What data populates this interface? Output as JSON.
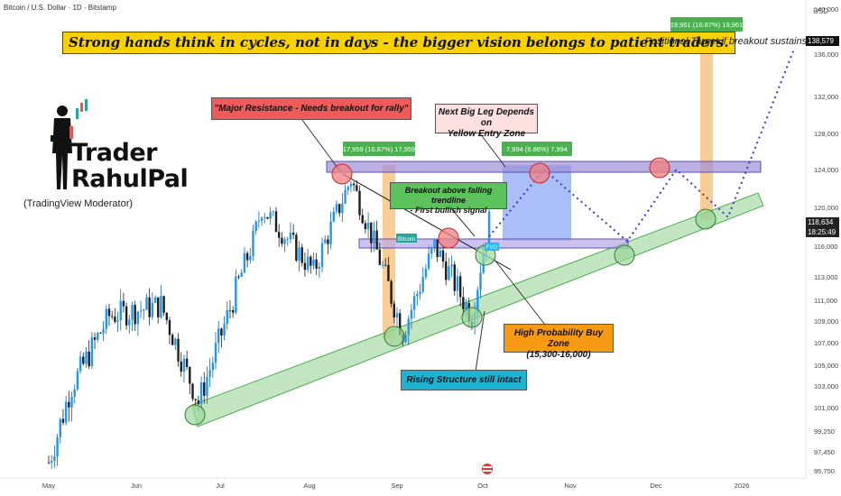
{
  "header": {
    "symbol_line": "Bitcoin / U.S. Dollar · 1D · Bitstamp",
    "currency": "USD"
  },
  "headline": "Strong hands think in cycles, not in days - the bigger vision belongs to patient traders.",
  "positional_target": "· Positional Target if breakout sustains ·",
  "logo": {
    "line1": "Trader",
    "line2": "RahulPal",
    "subtitle": "(TradingView Moderator)"
  },
  "annotations": {
    "major_resistance": "\"Major Resistance - Needs breakout for rally\"",
    "next_leg_line1": "Next Big Leg Depends on",
    "next_leg_line2": "Yellow Entry Zone",
    "breakout_line1": "Breakout above falling trendline",
    "breakout_line2": "- First bullish signal",
    "buy_zone_line1": "High Probability Buy Zone",
    "buy_zone_line2": "(15,300-16,000)",
    "rising": "Rising Structure still intact",
    "measure1": "17,959 (16.87%) 17,959",
    "measure2": "7,994 (6.86%) 7,994",
    "measure3": "19,961 (16.87%) 19,961",
    "bitcoin_tag": "Bitcoin",
    "fvg_tag": "FVG"
  },
  "price_axis": {
    "ticks": [
      "140,000",
      "136,000",
      "132,000",
      "128,000",
      "124,000",
      "120,000",
      "116,000",
      "113,000",
      "111,000",
      "109,000",
      "107,000",
      "105,000",
      "103,000",
      "101,000",
      "99,250",
      "97,450",
      "95,750"
    ],
    "current_price": "118,634",
    "countdown": "18:25:49",
    "target_price": "138,579"
  },
  "time_axis": {
    "labels": [
      "May",
      "Jun",
      "Jul",
      "Aug",
      "Sep",
      "Oct",
      "Nov",
      "Dec",
      "2026"
    ]
  },
  "colors": {
    "up": "#26a69a",
    "down": "#1e1e1e",
    "highlight_candle": "#2196f3",
    "resistance_zone": "#9c8fd9",
    "support_channel": "#90d090",
    "entry_box": "#8ea8f5",
    "orange_column": "#f7a440",
    "projection": "#3a3ad0"
  },
  "chart_data": {
    "type": "candlestick",
    "x": [
      "2025-05-01",
      "2025-05-09",
      "2025-05-22",
      "2025-06-09",
      "2025-06-22",
      "2025-07-11",
      "2025-07-14",
      "2025-08-01",
      "2025-08-14",
      "2025-09-01",
      "2025-09-12",
      "2025-09-25",
      "2025-10-01"
    ],
    "close": [
      96500,
      103000,
      109500,
      110500,
      101500,
      116500,
      120000,
      113500,
      123000,
      108000,
      116000,
      109500,
      118634
    ],
    "last_price": 118634,
    "ylim": [
      95750,
      140000
    ],
    "resistance_zone": [
      123500,
      125000
    ],
    "support_zone_breakout": [
      115800,
      116700
    ],
    "rising_channel": {
      "from": [
        "2025-06-22",
        101000
      ],
      "to": [
        "2025-12-31",
        120500
      ]
    },
    "measurements": [
      {
        "label": "17,959 (16.87%) 17,959"
      },
      {
        "label": "7,994 (6.86%) 7,994"
      },
      {
        "label": "19,961 (16.87%) 19,961"
      }
    ],
    "projection": {
      "x": [
        "2025-10-01",
        "2025-10-20",
        "2025-11-18",
        "2025-12-05",
        "2025-12-23",
        "2026-01-15"
      ],
      "y": [
        117000,
        124000,
        116500,
        124000,
        119000,
        136500
      ]
    }
  }
}
